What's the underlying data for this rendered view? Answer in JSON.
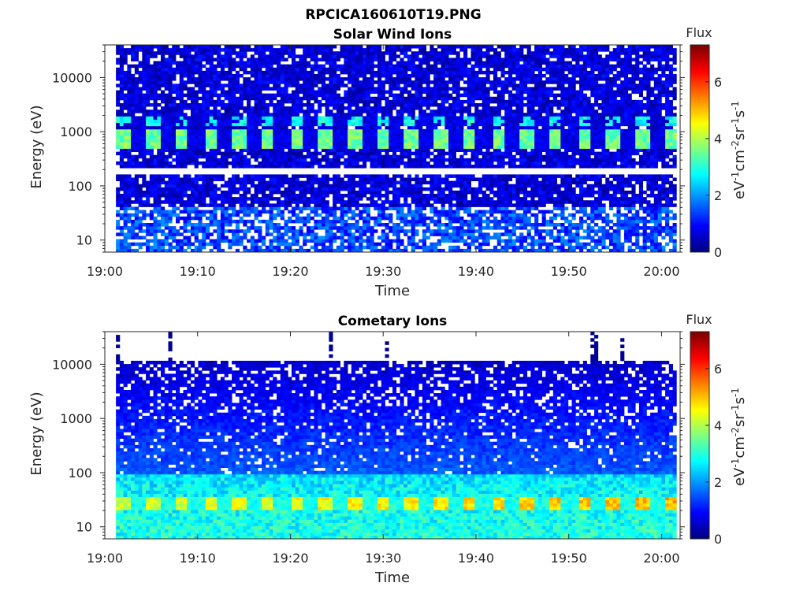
{
  "figure": {
    "title": "RPCICA160610T19.PNG"
  },
  "chart_data": [
    {
      "type": "heatmap",
      "title": "Solar Wind Ions",
      "xlabel": "Time",
      "ylabel": "Energy (eV)",
      "x_tick_labels": [
        "19:00",
        "19:10",
        "19:20",
        "19:30",
        "19:40",
        "19:50",
        "20:00"
      ],
      "y_tick_labels": [
        "10",
        "100",
        "1000",
        "10000"
      ],
      "y_scale": "log",
      "ylim": [
        6,
        40000
      ],
      "xlim": [
        "19:00",
        "20:02"
      ],
      "colorbar": {
        "title": "Flux",
        "label": "eV-1cm-2sr-1s-1",
        "ticks": [
          "0",
          "2",
          "4",
          "6"
        ],
        "range": [
          0,
          7.3
        ],
        "colormap": "jet"
      },
      "features": [
        {
          "energy_range_eV": [
            500,
            1000
          ],
          "peak_flux": 3.8,
          "pattern": "periodic bursts roughly every 3 minutes"
        },
        {
          "energy_range_eV": [
            1200,
            2000
          ],
          "peak_flux": 3.2,
          "pattern": "periodic bursts"
        },
        {
          "energy_eV": 190,
          "pattern": "empty energy channel (white line)"
        },
        {
          "energy_range_eV": [
            6,
            40
          ],
          "peak_flux": 2.0,
          "pattern": "patchy background"
        }
      ],
      "background_flux": 0.6
    },
    {
      "type": "heatmap",
      "title": "Cometary Ions",
      "xlabel": "Time",
      "ylabel": "Energy (eV)",
      "x_tick_labels": [
        "19:00",
        "19:10",
        "19:20",
        "19:30",
        "19:40",
        "19:50",
        "20:00"
      ],
      "y_tick_labels": [
        "10",
        "100",
        "1000",
        "10000"
      ],
      "y_scale": "log",
      "ylim": [
        6,
        40000
      ],
      "xlim": [
        "19:00",
        "20:02"
      ],
      "colorbar": {
        "title": "Flux",
        "label": "eV-1cm-2sr-1s-1",
        "ticks": [
          "0",
          "2",
          "4",
          "6"
        ],
        "range": [
          0,
          7.3
        ],
        "colormap": "jet"
      },
      "features": [
        {
          "energy_range_eV": [
            20,
            35
          ],
          "peak_flux": 5.0,
          "pattern": "periodic bursts roughly every 3 minutes, brightest near 20:00"
        },
        {
          "energy_range_eV": [
            6,
            100
          ],
          "peak_flux": 3.0,
          "pattern": "elevated low-energy flux"
        },
        {
          "energy_range_eV": [
            100,
            11000
          ],
          "peak_flux": 1.2,
          "pattern": "decreasing with energy"
        },
        {
          "energy_range_eV": [
            11000,
            40000
          ],
          "peak_flux": 0.3,
          "pattern": "mostly empty, sparse dark-blue streaks at 19:01, 19:07, 19:24, 19:30, 19:52, 19:55"
        }
      ],
      "background_flux": 0.8
    }
  ]
}
